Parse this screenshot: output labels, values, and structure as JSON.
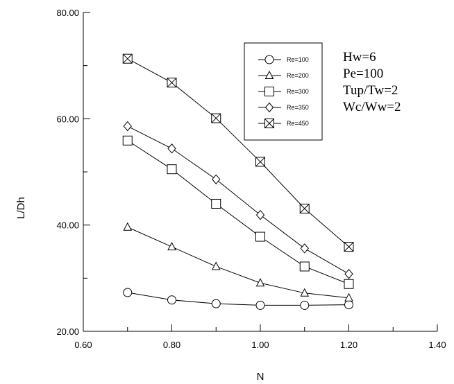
{
  "chart_data": {
    "type": "line",
    "title": "",
    "xlabel": "N",
    "ylabel": "L/Dh",
    "xlim": [
      0.6,
      1.4
    ],
    "ylim": [
      20,
      80
    ],
    "xticks": [
      0.6,
      0.8,
      1.0,
      1.2,
      1.4
    ],
    "xtick_labels": [
      "0.60",
      "0.80",
      "1.00",
      "1.20",
      "1.40"
    ],
    "yticks": [
      20,
      40,
      60,
      80
    ],
    "ytick_labels": [
      "20.00",
      "40.00",
      "60.00",
      "80.00"
    ],
    "grid": false,
    "legend_position": "top-center",
    "x": [
      0.7,
      0.8,
      0.9,
      1.0,
      1.1,
      1.2
    ],
    "series": [
      {
        "name": "Re=100",
        "marker": "circle",
        "values": [
          27.3,
          25.9,
          25.2,
          24.9,
          24.9,
          25.0
        ]
      },
      {
        "name": "Re=200",
        "marker": "triangle",
        "values": [
          39.6,
          35.9,
          32.2,
          29.1,
          27.2,
          26.3
        ]
      },
      {
        "name": "Re=300",
        "marker": "square",
        "values": [
          55.9,
          50.5,
          44.0,
          37.8,
          32.2,
          28.9
        ]
      },
      {
        "name": "Re=350",
        "marker": "diamond",
        "values": [
          58.6,
          54.4,
          48.6,
          41.9,
          35.6,
          30.8
        ]
      },
      {
        "name": "Re=450",
        "marker": "crossed-square",
        "values": [
          71.3,
          66.8,
          60.1,
          51.9,
          43.1,
          35.9
        ]
      }
    ],
    "annotations": [
      "Hw=6",
      "Pe=100",
      "Tup/Tw=2",
      "Wc/Ww=2"
    ]
  }
}
